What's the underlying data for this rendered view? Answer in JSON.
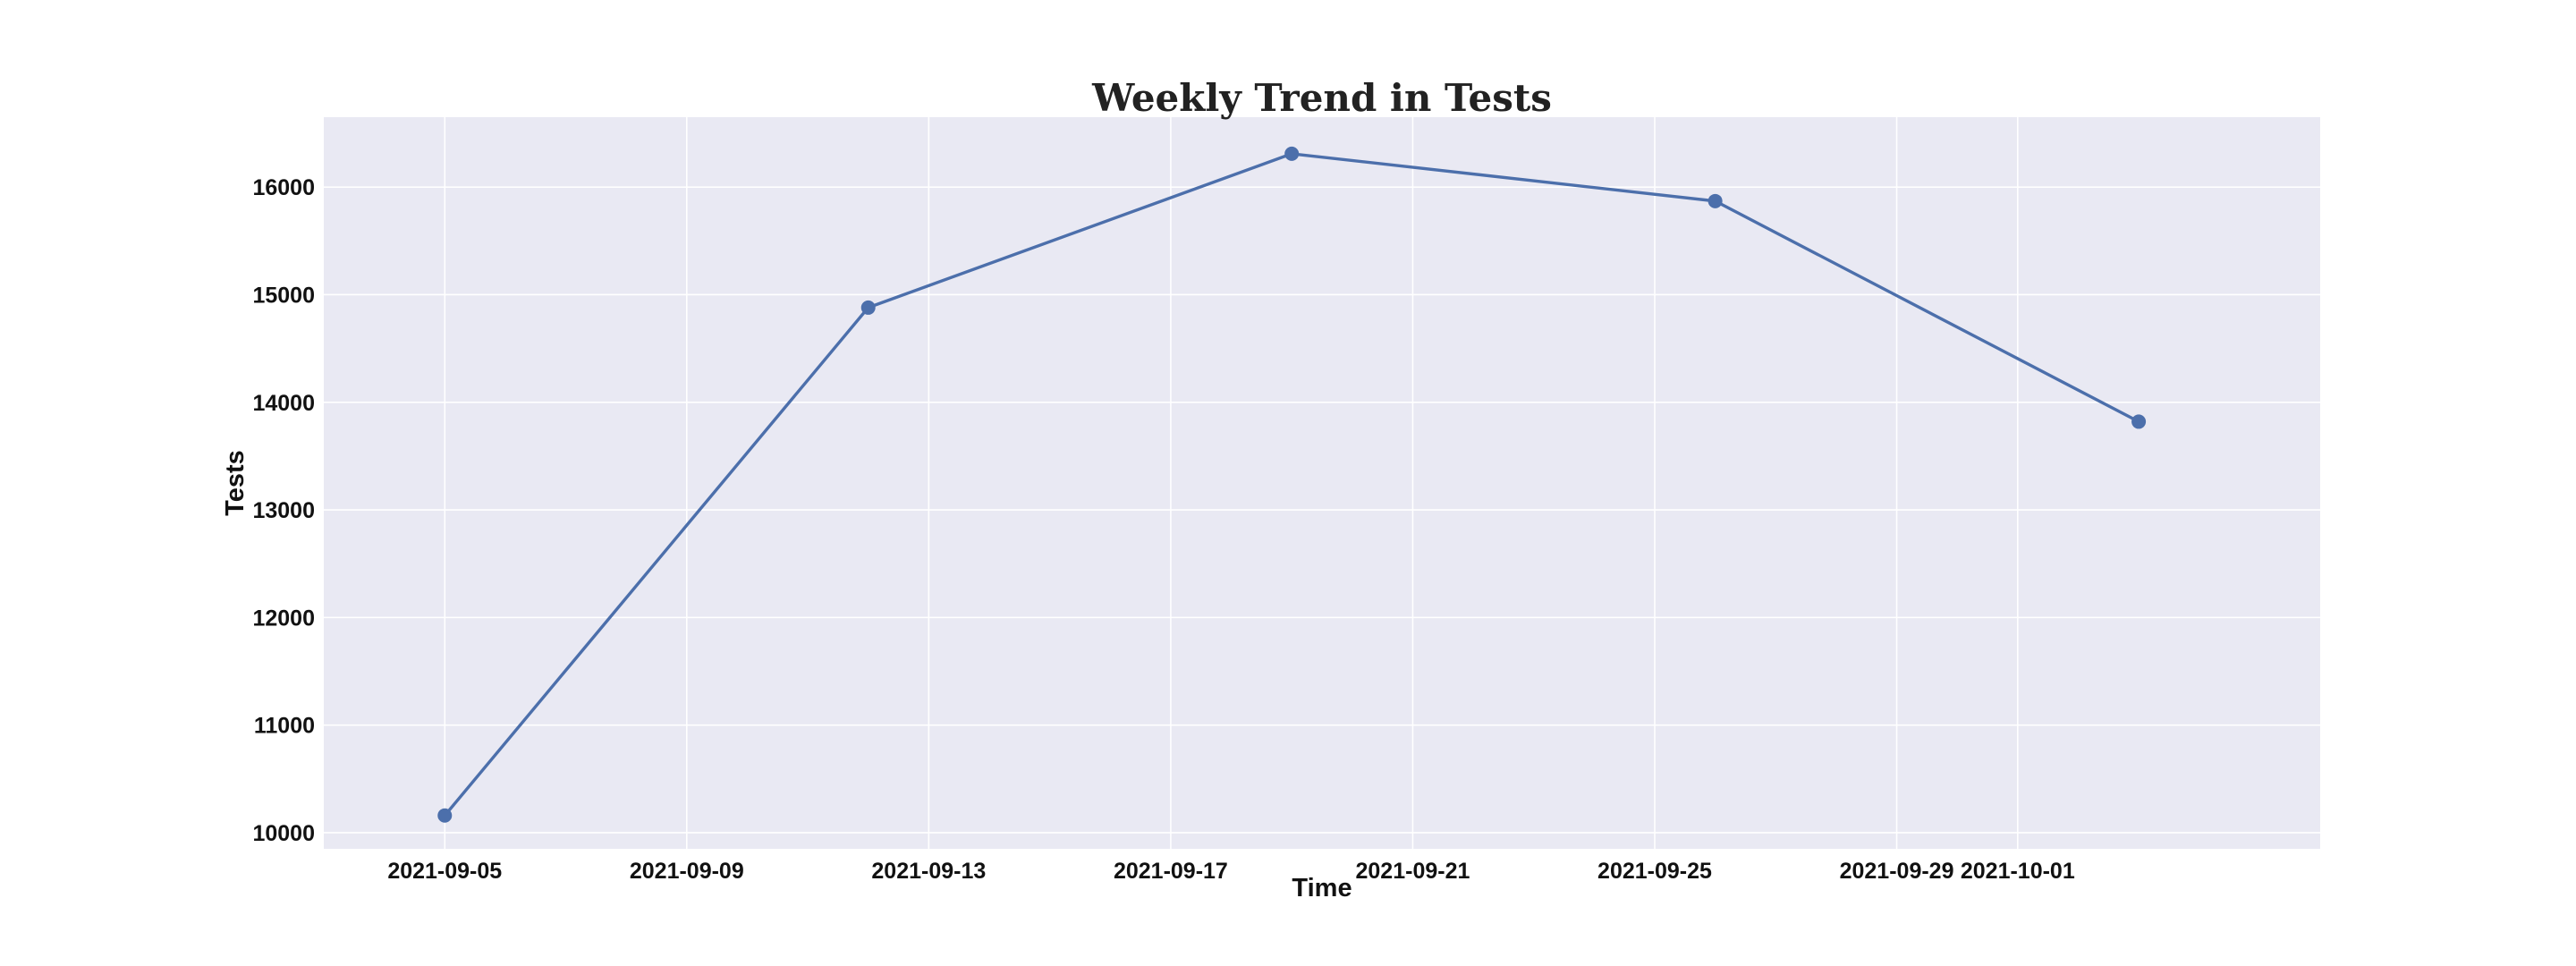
{
  "chart_data": {
    "type": "line",
    "title": "Weekly Trend in Tests",
    "xlabel": "Time",
    "ylabel": "Tests",
    "grid": true,
    "x_ticks": [
      "2021-09-05",
      "2021-09-09",
      "2021-09-13",
      "2021-09-17",
      "2021-09-21",
      "2021-09-25",
      "2021-09-29",
      "2021-10-01"
    ],
    "y_ticks": [
      10000,
      11000,
      12000,
      13000,
      14000,
      15000,
      16000
    ],
    "xlim": [
      "2021-09-03",
      "2021-10-06"
    ],
    "ylim": [
      9850,
      16650
    ],
    "series": [
      {
        "color": "#4c6fab",
        "x": [
          "2021-09-05",
          "2021-09-12",
          "2021-09-19",
          "2021-09-26",
          "2021-10-03"
        ],
        "y": [
          10160,
          14880,
          16310,
          15870,
          13820
        ]
      }
    ]
  },
  "colors": {
    "plot_background": "#e9e9f3",
    "grid": "#ffffff"
  }
}
